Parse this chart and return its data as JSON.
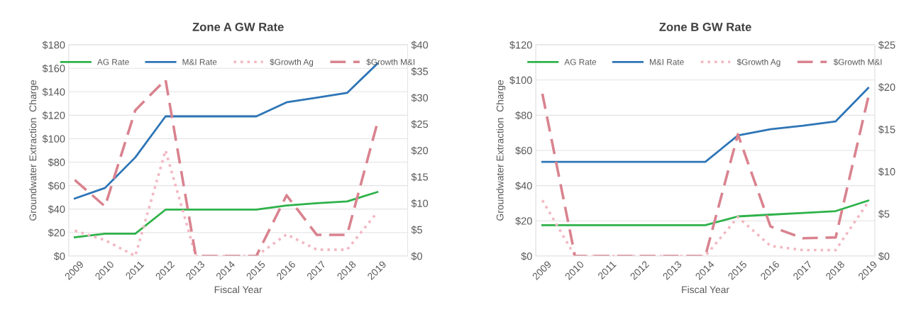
{
  "chart_data": [
    {
      "type": "line",
      "title": "Zone A GW Rate",
      "xlabel": "Fiscal Year",
      "ylabel": "Groundwater Extraction  Charge",
      "categories": [
        "2009",
        "2010",
        "2011",
        "2012",
        "2013",
        "2014",
        "2015",
        "2016",
        "2017",
        "2018",
        "2019"
      ],
      "ylim": [
        0,
        180
      ],
      "yticks": [
        {
          "value": 0,
          "label": "$0"
        },
        {
          "value": 20,
          "label": "$20"
        },
        {
          "value": 40,
          "label": "$40"
        },
        {
          "value": 60,
          "label": "$60"
        },
        {
          "value": 80,
          "label": "$80"
        },
        {
          "value": 100,
          "label": "$100"
        },
        {
          "value": 120,
          "label": "$120"
        },
        {
          "value": 140,
          "label": "$140"
        },
        {
          "value": 160,
          "label": "$160"
        },
        {
          "value": 180,
          "label": "$180"
        }
      ],
      "y2lim": [
        0,
        40
      ],
      "y2ticks": [
        {
          "value": 0,
          "label": "$0"
        },
        {
          "value": 5,
          "label": "$5"
        },
        {
          "value": 10,
          "label": "$10"
        },
        {
          "value": 15,
          "label": "$15"
        },
        {
          "value": 20,
          "label": "$20"
        },
        {
          "value": 25,
          "label": "$25"
        },
        {
          "value": 30,
          "label": "$30"
        },
        {
          "value": 35,
          "label": "$35"
        },
        {
          "value": 40,
          "label": "$40"
        }
      ],
      "grid": "y",
      "legend": "top",
      "marker": "none",
      "series": [
        {
          "name": "AG Rate",
          "color": "#2eb24a",
          "line_style": "solid",
          "values": [
            16,
            19,
            19,
            39.5,
            39.5,
            39.5,
            39.5,
            43,
            45,
            46.5,
            54.5
          ]
        },
        {
          "name": "M&I Rate",
          "color": "#2e75b6",
          "line_style": "solid",
          "values": [
            49,
            58,
            84,
            119,
            119,
            119,
            119,
            131,
            135,
            139,
            164
          ]
        },
        {
          "name": "$Growth Ag",
          "color": "#f2b8c3",
          "line_style": "dotted",
          "axis": "y2",
          "values": [
            4.8,
            3,
            0,
            20,
            0,
            0,
            0,
            4.1,
            1.2,
            1.2,
            8.3
          ]
        },
        {
          "name": "$Growth M&I",
          "color": "#d9838f",
          "line_style": "dashed",
          "axis": "y2",
          "values": [
            14.4,
            9.4,
            27.6,
            33.4,
            0,
            0,
            0,
            11.5,
            4,
            4,
            25.2
          ]
        }
      ]
    },
    {
      "type": "line",
      "title": "Zone B GW Rate",
      "xlabel": "Fiscal Year",
      "ylabel": "Groundwater Extraction  Charge",
      "categories": [
        "2009",
        "2010",
        "2011",
        "2012",
        "2013",
        "2014",
        "2015",
        "2016",
        "2017",
        "2018",
        "2019"
      ],
      "ylim": [
        0,
        120
      ],
      "yticks": [
        {
          "value": 0,
          "label": "$0"
        },
        {
          "value": 20,
          "label": "$20"
        },
        {
          "value": 40,
          "label": "$40"
        },
        {
          "value": 60,
          "label": "$60"
        },
        {
          "value": 80,
          "label": "$80"
        },
        {
          "value": 100,
          "label": "$100"
        },
        {
          "value": 120,
          "label": "$120"
        }
      ],
      "y2lim": [
        0,
        25
      ],
      "y2ticks": [
        {
          "value": 0,
          "label": "$0"
        },
        {
          "value": 5,
          "label": "$5"
        },
        {
          "value": 10,
          "label": "$10"
        },
        {
          "value": 15,
          "label": "$15"
        },
        {
          "value": 20,
          "label": "$20"
        },
        {
          "value": 25,
          "label": "$25"
        }
      ],
      "grid": "y",
      "legend": "top",
      "marker": "none",
      "series": [
        {
          "name": "AG Rate",
          "color": "#2eb24a",
          "line_style": "solid",
          "values": [
            17.5,
            17.5,
            17.5,
            17.5,
            17.5,
            17.5,
            22.5,
            23.5,
            24.5,
            25.5,
            31.5
          ]
        },
        {
          "name": "M&I Rate",
          "color": "#2e75b6",
          "line_style": "solid",
          "values": [
            53.5,
            53.5,
            53.5,
            53.5,
            53.5,
            53.5,
            68.5,
            72,
            74,
            76.5,
            95.5
          ]
        },
        {
          "name": "$Growth Ag",
          "color": "#f2b8c3",
          "line_style": "dotted",
          "axis": "y2",
          "values": [
            6.6,
            0,
            0,
            0,
            0,
            0,
            4.6,
            1.2,
            0.7,
            0.7,
            6.4
          ]
        },
        {
          "name": "$Growth M&I",
          "color": "#d9838f",
          "line_style": "dashed",
          "axis": "y2",
          "values": [
            19.2,
            0,
            0,
            0,
            0,
            0,
            14.4,
            3.5,
            2.1,
            2.2,
            18.8
          ]
        }
      ]
    }
  ]
}
